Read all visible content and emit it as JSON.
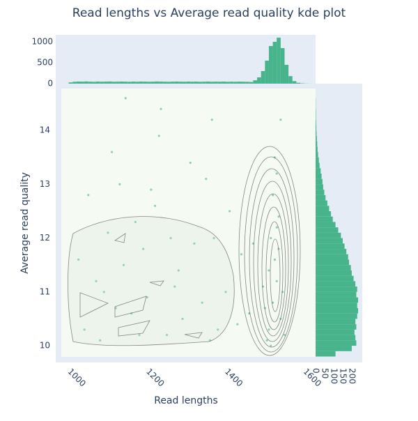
{
  "chart_data": [
    {
      "type": "scatter",
      "title": "Read lengths vs Average read quality kde plot",
      "x_label": "Read lengths",
      "y_label": "Average read quality",
      "xlim": [
        947,
        1609
      ],
      "ylim": [
        9.69,
        14.87
      ],
      "xticks": [
        1000,
        1200,
        1400,
        1600
      ],
      "yticks": [
        10,
        11,
        12,
        13,
        14
      ],
      "color": "#48b48c",
      "x": [
        1490,
        1500,
        1510,
        1505,
        1495,
        1515,
        1520,
        1485,
        1525,
        1500,
        1510,
        1490,
        1530,
        1480,
        1515,
        1505,
        1520,
        1495,
        1510,
        1475,
        1020,
        1050,
        1080,
        1110,
        1140,
        1170,
        1200,
        1230,
        1260,
        1290,
        1320,
        1350,
        1380,
        1410,
        1030,
        1060,
        1090,
        1120,
        1150,
        1180,
        1210,
        1240,
        1270,
        1300,
        1330,
        1360,
        1390,
        1420,
        1005,
        1125,
        1215,
        1345,
        1070,
        1160,
        1250,
        1340,
        1440,
        1450,
        1100,
        1190
      ],
      "values": [
        10.3,
        10.8,
        11.2,
        11.6,
        12.0,
        12.4,
        10.5,
        10.1,
        11.0,
        12.8,
        13.2,
        11.4,
        10.2,
        10.7,
        11.8,
        13.5,
        14.2,
        10.0,
        12.2,
        11.1,
        10.3,
        11.2,
        12.1,
        13.0,
        10.6,
        11.8,
        12.6,
        10.2,
        11.4,
        13.4,
        10.8,
        12.0,
        11.0,
        10.4,
        12.8,
        10.1,
        13.6,
        11.5,
        12.3,
        10.9,
        13.9,
        12.0,
        10.5,
        11.9,
        13.1,
        10.3,
        12.5,
        11.7,
        11.6,
        14.6,
        14.4,
        14.2,
        11.0,
        10.2,
        11.1,
        10.1,
        10.6,
        11.9,
        10.7,
        12.9
      ]
    },
    {
      "type": "histogram",
      "orientation": "vertical",
      "xlim": [
        947,
        1609
      ],
      "ylim": [
        0,
        1167
      ],
      "yticks": [
        0,
        500,
        1000
      ],
      "color": "#48b48c",
      "bins": [
        980,
        990,
        1000,
        1010,
        1020,
        1030,
        1040,
        1050,
        1060,
        1070,
        1080,
        1090,
        1100,
        1110,
        1120,
        1130,
        1140,
        1150,
        1160,
        1170,
        1180,
        1190,
        1200,
        1210,
        1220,
        1230,
        1240,
        1250,
        1260,
        1270,
        1280,
        1290,
        1300,
        1310,
        1320,
        1330,
        1340,
        1350,
        1360,
        1370,
        1380,
        1390,
        1400,
        1410,
        1420,
        1430,
        1440,
        1450,
        1460,
        1470,
        1480,
        1490,
        1500,
        1510,
        1520,
        1530,
        1540,
        1550,
        1560,
        1570,
        1580,
        1590,
        1600
      ],
      "values": [
        30,
        45,
        50,
        48,
        52,
        47,
        44,
        50,
        46,
        49,
        51,
        45,
        48,
        50,
        47,
        44,
        49,
        46,
        50,
        48,
        45,
        47,
        51,
        49,
        46,
        44,
        48,
        50,
        47,
        45,
        49,
        46,
        48,
        44,
        47,
        50,
        45,
        48,
        46,
        49,
        44,
        47,
        45,
        48,
        46,
        44,
        40,
        80,
        150,
        300,
        550,
        900,
        1000,
        1100,
        850,
        450,
        180,
        60,
        20,
        8,
        3,
        1
      ]
    },
    {
      "type": "histogram",
      "orientation": "horizontal",
      "xlim": [
        0,
        258
      ],
      "ylim": [
        9.69,
        14.87
      ],
      "xticks": [
        0,
        50,
        100,
        150,
        200
      ],
      "color": "#48b48c",
      "bins": [
        9.8,
        9.9,
        10.0,
        10.1,
        10.2,
        10.3,
        10.4,
        10.5,
        10.6,
        10.7,
        10.8,
        10.9,
        11.0,
        11.1,
        11.2,
        11.3,
        11.4,
        11.5,
        11.6,
        11.7,
        11.8,
        11.9,
        12.0,
        12.1,
        12.2,
        12.3,
        12.4,
        12.5,
        12.6,
        12.7,
        12.8,
        12.9,
        13.0,
        13.1,
        13.2,
        13.3,
        13.4,
        13.5,
        13.6,
        13.7,
        13.8,
        13.9,
        14.0,
        14.1,
        14.2,
        14.3,
        14.4,
        14.5,
        14.6
      ],
      "values": [
        110,
        200,
        225,
        220,
        215,
        225,
        220,
        230,
        235,
        230,
        235,
        225,
        230,
        220,
        210,
        200,
        195,
        185,
        180,
        170,
        160,
        150,
        140,
        125,
        110,
        95,
        85,
        75,
        65,
        55,
        48,
        42,
        38,
        33,
        28,
        22,
        18,
        14,
        11,
        9,
        7,
        5,
        4,
        3,
        2,
        2,
        1,
        1
      ]
    }
  ]
}
